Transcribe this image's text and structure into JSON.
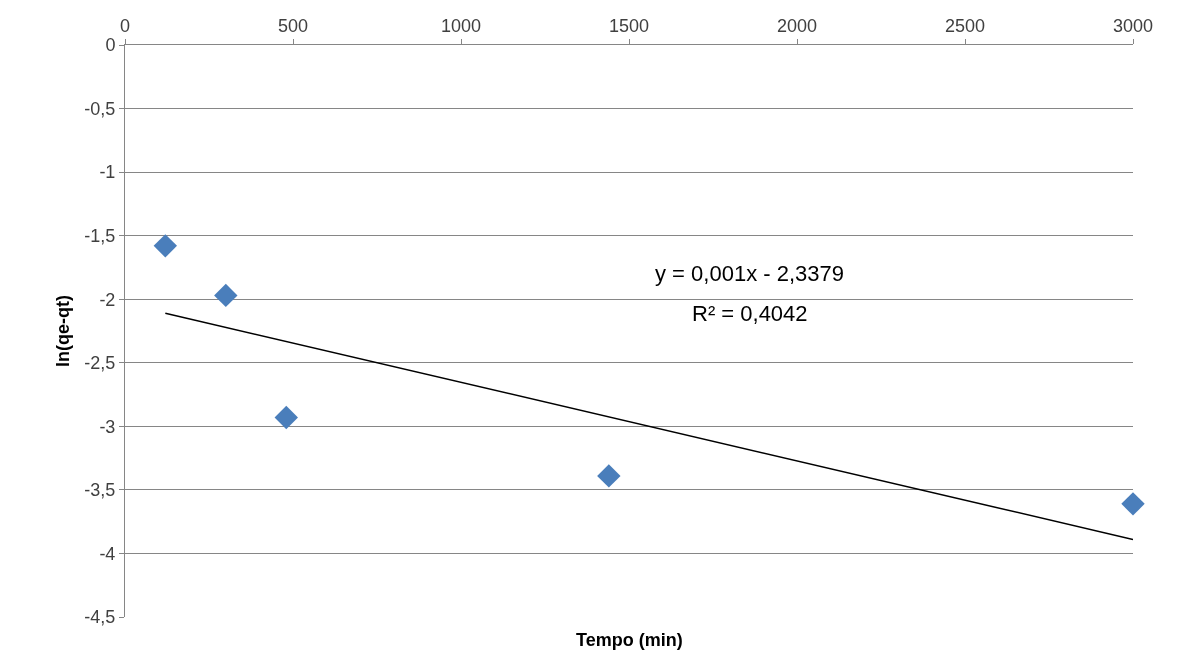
{
  "chart_data": {
    "type": "scatter",
    "xlabel": "Tempo (min)",
    "ylabel": "ln(qe-qt)",
    "series": [
      {
        "color": "#4a7ebb",
        "marker": "diamond",
        "x": [
          120,
          300,
          480,
          1440,
          3000
        ],
        "values": [
          -1.58,
          -1.97,
          -2.93,
          -3.39,
          -3.61
        ]
      },
      {
        "type": "line",
        "color": "#000000",
        "marker": "none",
        "line_style": "solid",
        "x": [
          120,
          3000
        ],
        "values": [
          -2.11,
          -3.89
        ]
      }
    ],
    "annotations": [
      "y = 0,001x - 2,3379",
      "R² = 0,4042"
    ],
    "xlim": [
      0,
      3000
    ],
    "xticks": [
      0,
      500,
      1000,
      1500,
      2000,
      2500,
      3000
    ],
    "ylim": [
      -4.5,
      0
    ],
    "yticks": [
      0,
      {
        "value": -0.5,
        "label": "-0,5"
      },
      -1,
      {
        "value": -1.5,
        "label": "-1,5"
      },
      -2,
      {
        "value": -2.5,
        "label": "-2,5"
      },
      -3,
      {
        "value": -3.5,
        "label": "-3,5"
      },
      -4,
      {
        "value": -4.5,
        "label": "-4,5"
      }
    ],
    "grid": "y"
  }
}
